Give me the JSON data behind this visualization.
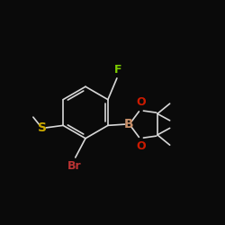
{
  "background": "#0a0a0a",
  "bond_color": "#d8d8d8",
  "atom_colors": {
    "F": "#7ccd00",
    "B": "#c8906a",
    "O": "#cc1a00",
    "Br": "#bb3333",
    "S": "#ccaa00",
    "C": "#d8d8d8"
  },
  "font_size": 9,
  "fig_size": [
    2.5,
    2.5
  ],
  "dpi": 100
}
